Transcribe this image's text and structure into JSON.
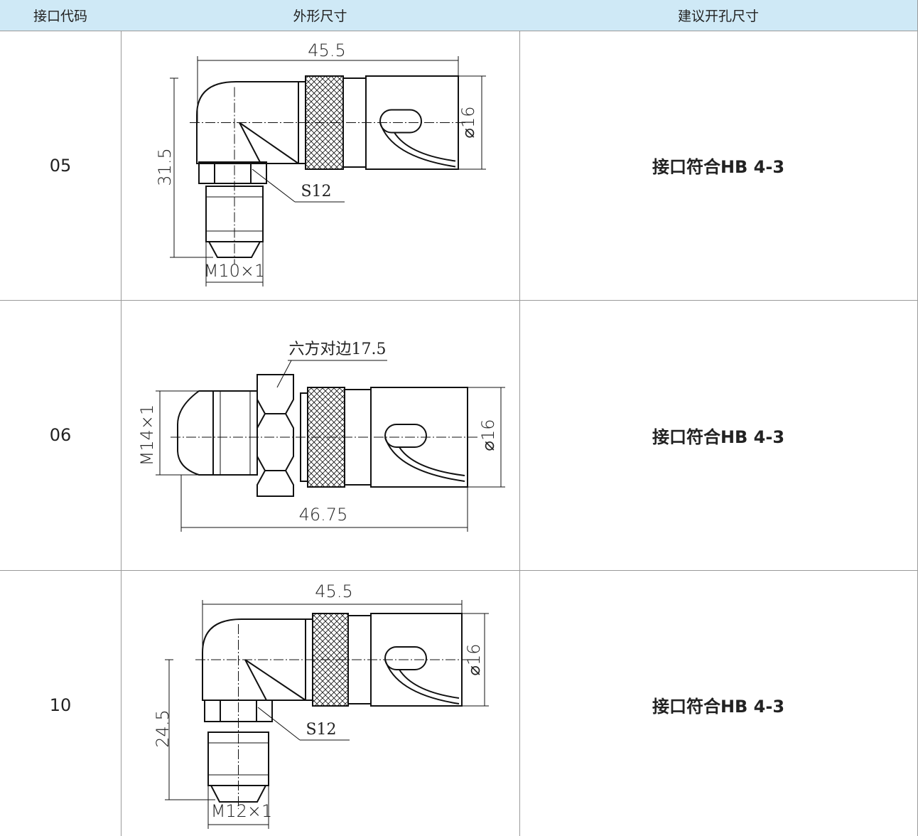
{
  "table": {
    "headers": [
      "接口代码",
      "外形尺寸",
      "建议开孔尺寸"
    ],
    "rows": [
      {
        "code": "05",
        "drawing": {
          "width": "45.5",
          "diameter": "⌀16",
          "height": "31.5",
          "hex": "S12",
          "thread": "M10×1"
        },
        "hole": "接口符合HB 4-3"
      },
      {
        "code": "06",
        "drawing": {
          "hex": "六方对边17.5",
          "thread": "M14×1",
          "diameter": "⌀16",
          "width": "46.75"
        },
        "hole": "接口符合HB 4-3"
      },
      {
        "code": "10",
        "drawing": {
          "width": "45.5",
          "diameter": "⌀16",
          "height": "24.5",
          "hex": "S12",
          "thread": "M12×1"
        },
        "hole": "接口符合HB 4-3"
      }
    ]
  }
}
